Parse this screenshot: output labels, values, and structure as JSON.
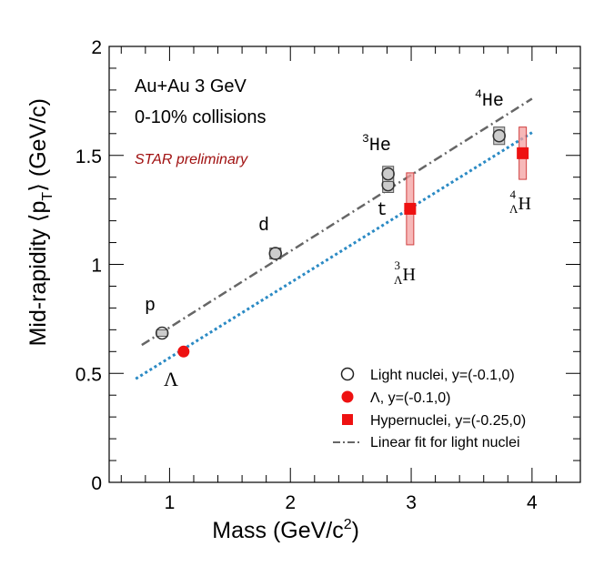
{
  "chart_data": {
    "type": "scatter",
    "title": "",
    "xlabel": "Mass (GeV/c",
    "xlabel_sup": "2",
    "xlabel_end": ")",
    "ylabel": "Mid-rapidity ⟨p",
    "ylabel_sub": "T",
    "ylabel_end": "⟩ (GeV/c)",
    "xlim": [
      0.5,
      4.4
    ],
    "ylim": [
      0,
      2
    ],
    "x_ticks": [
      1,
      2,
      3,
      4
    ],
    "y_ticks": [
      0,
      0.5,
      1,
      1.5,
      2
    ],
    "x_tick_labels": [
      "1",
      "2",
      "3",
      "4"
    ],
    "y_tick_labels": [
      "0",
      "0.5",
      "1",
      "1.5",
      "2"
    ],
    "grid": false,
    "legend_position": "bottom-right",
    "annotations": {
      "system": "Au+Au 3 GeV",
      "centrality": "0-10% collisions",
      "preliminary": "STAR preliminary"
    },
    "colors": {
      "light": "#333333",
      "lambda": "#ee1111",
      "hyper": "#ee1111",
      "hyper_sys": "#f4a0a0",
      "fit_light": "#666666",
      "fit_hyper": "#2b8ac4",
      "preliminary": "#a01010"
    },
    "series": [
      {
        "name": "Light nuclei, y=(-0.1,0)",
        "marker": "open-circle",
        "points": [
          {
            "x": 0.938,
            "y": 0.685,
            "label": "p",
            "sys": 0.015
          },
          {
            "x": 1.876,
            "y": 1.05,
            "label": "d",
            "sys": 0.025
          },
          {
            "x": 2.809,
            "y": 1.365,
            "label": "t",
            "sys": 0.035
          },
          {
            "x": 2.809,
            "y": 1.415,
            "label": "3He",
            "sys": 0.035
          },
          {
            "x": 3.728,
            "y": 1.59,
            "label": "4He",
            "sys": 0.04
          }
        ]
      },
      {
        "name": "Λ, y=(-0.1,0)",
        "marker": "filled-circle",
        "points": [
          {
            "x": 1.116,
            "y": 0.6,
            "label": "Λ"
          }
        ]
      },
      {
        "name": "Hypernuclei, y=(-0.25,0)",
        "marker": "filled-square",
        "points": [
          {
            "x": 2.991,
            "y": 1.255,
            "label": "3ΛH",
            "sys_low": 1.09,
            "sys_high": 1.42
          },
          {
            "x": 3.923,
            "y": 1.51,
            "label": "4ΛH",
            "sys_low": 1.39,
            "sys_high": 1.63
          }
        ]
      },
      {
        "name": "Linear fit for light nuclei",
        "marker": "dash-dot-line",
        "line": {
          "x1": 0.77,
          "y1": 0.63,
          "x2": 4.0,
          "y2": 1.76
        }
      },
      {
        "name": "",
        "marker": "dotted-line",
        "line": {
          "x1": 0.72,
          "y1": 0.475,
          "x2": 4.0,
          "y2": 1.605
        }
      }
    ],
    "point_labels": {
      "p": "p",
      "d": "d",
      "t": "t",
      "he3_sup": "3",
      "he3_main": "He",
      "he4_sup": "4",
      "he4_main": "He",
      "lambda": "Λ",
      "h3_sup": "3",
      "h3_sub": "Λ",
      "h3_main": "H",
      "h4_sup": "4",
      "h4_sub": "Λ",
      "h4_main": "H"
    }
  }
}
